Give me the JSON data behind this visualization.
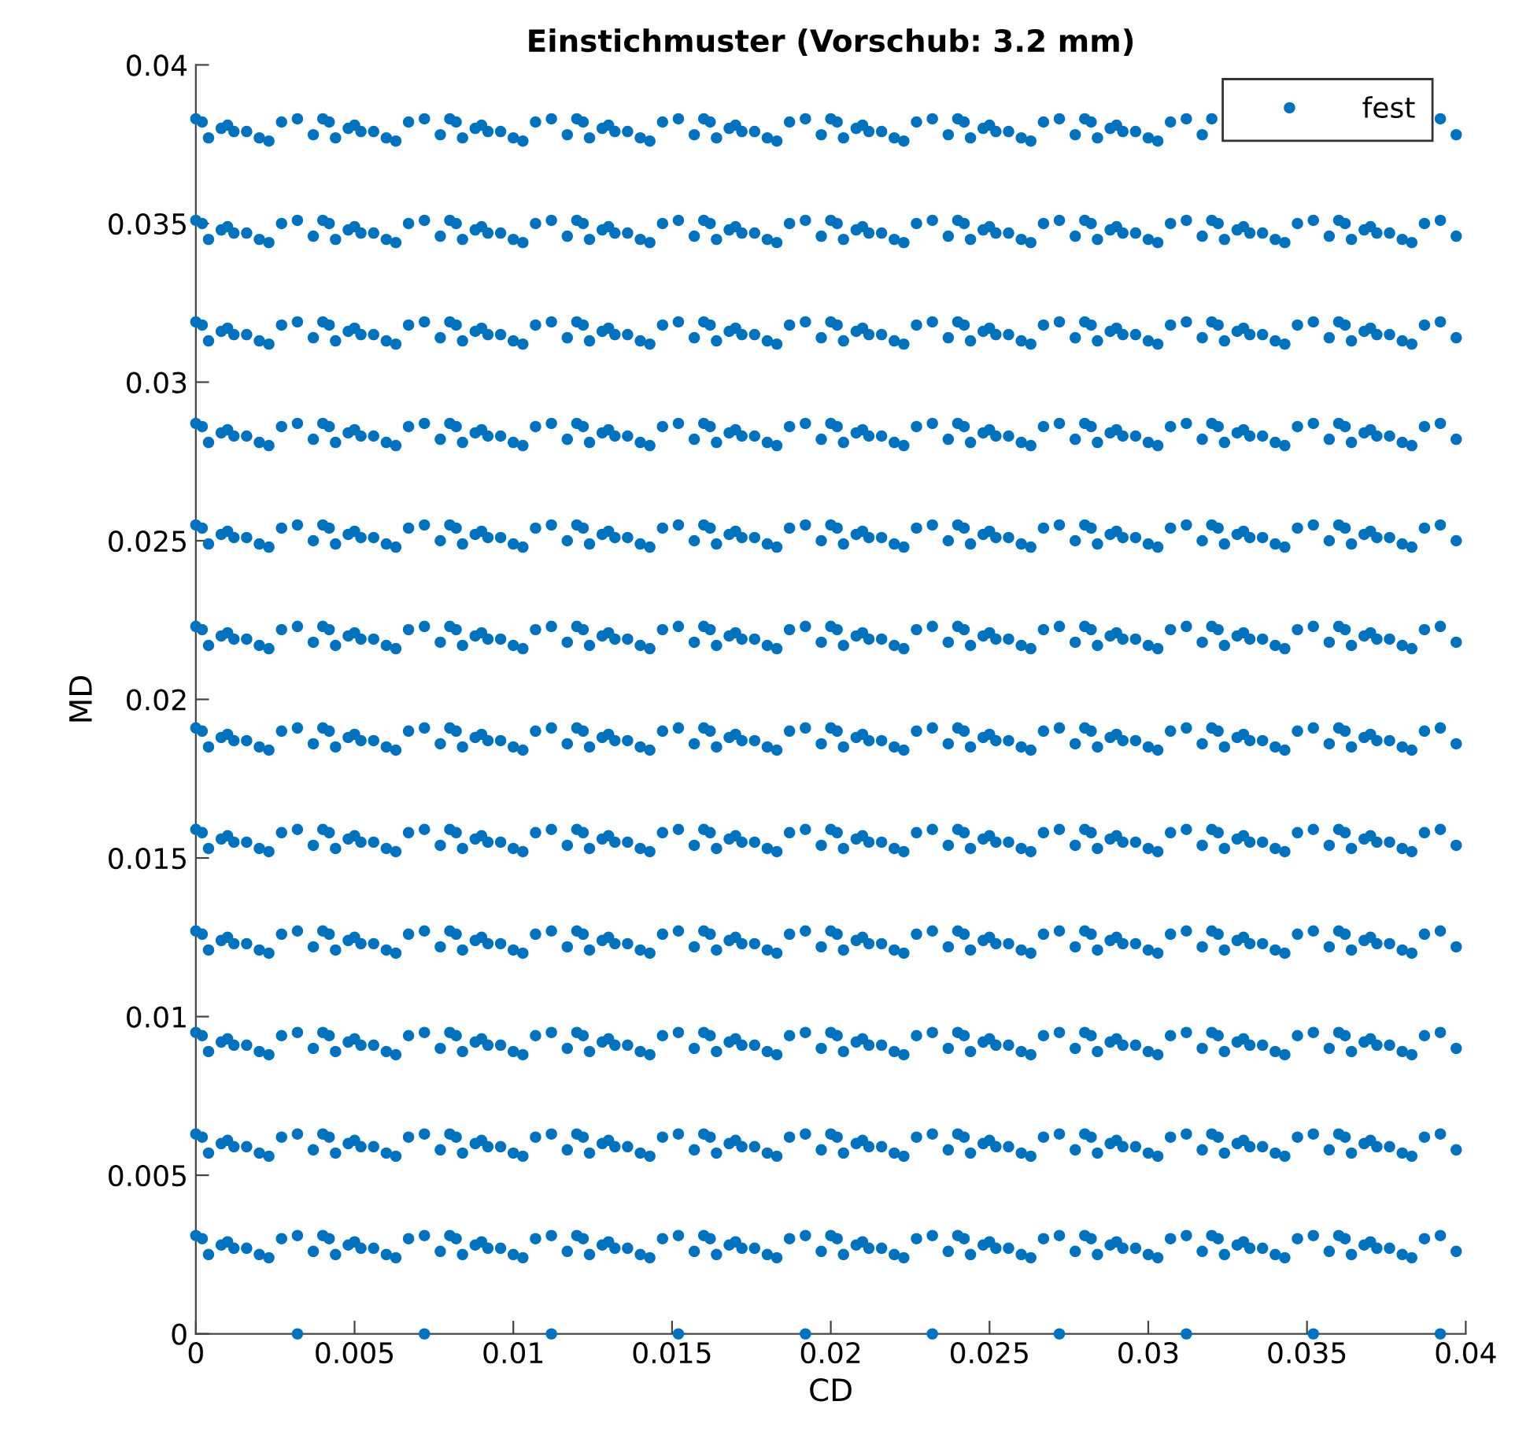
{
  "chart_data": {
    "type": "scatter",
    "title": "Einstichmuster (Vorschub: 3.2 mm)",
    "xlabel": "CD",
    "ylabel": "MD",
    "xlim": [
      0,
      0.04
    ],
    "ylim": [
      0,
      0.04
    ],
    "xticks": [
      0,
      0.005,
      0.01,
      0.015,
      0.02,
      0.025,
      0.03,
      0.035,
      0.04
    ],
    "yticks": [
      0,
      0.005,
      0.01,
      0.015,
      0.02,
      0.025,
      0.03,
      0.035,
      0.04
    ],
    "grid": false,
    "legend": "top right",
    "marker": "circle",
    "x": [
      0,
      0.0002,
      0.0004,
      0.0008,
      0.001,
      0.0012,
      0.0016,
      0.002,
      0.0023,
      0.0027,
      0.0032,
      0.0037,
      0.004,
      0.0042,
      0.0044,
      0.0048,
      0.005,
      0.0052,
      0.0056,
      0.006,
      0.0063,
      0.0067,
      0.0072,
      0.0077,
      0.008,
      0.0082,
      0.0084,
      0.0088,
      0.009,
      0.0092,
      0.0096,
      0.01,
      0.0103,
      0.0107,
      0.0112,
      0.0117,
      0.012,
      0.0122,
      0.0124,
      0.0128,
      0.013,
      0.0132,
      0.0136,
      0.014,
      0.0143,
      0.0147,
      0.0152,
      0.0157,
      0.016,
      0.0162,
      0.0164,
      0.0168,
      0.017,
      0.0172,
      0.0176,
      0.018,
      0.0183,
      0.0187,
      0.0192,
      0.0197,
      0.02,
      0.0202,
      0.0204,
      0.0208,
      0.021,
      0.0212,
      0.0216,
      0.022,
      0.0223,
      0.0227,
      0.0232,
      0.0237,
      0.024,
      0.0242,
      0.0244,
      0.0248,
      0.025,
      0.0252,
      0.0256,
      0.026,
      0.0263,
      0.0267,
      0.0272,
      0.0277,
      0.028,
      0.0282,
      0.0284,
      0.0288,
      0.029,
      0.0292,
      0.0296,
      0.03,
      0.0303,
      0.0307,
      0.0312,
      0.0317,
      0.032,
      0.0322,
      0.0324,
      0.0328,
      0.033,
      0.0332,
      0.0336,
      0.034,
      0.0343,
      0.0347,
      0.0352,
      0.0357,
      0.036,
      0.0362,
      0.0364,
      0.0368,
      0.037,
      0.0372,
      0.0376,
      0.038,
      0.0383,
      0.0387,
      0.0392,
      0.0397
    ],
    "series": [
      {
        "name": "fest",
        "color": "#0072bd",
        "values": [
          0.0383,
          0.0382,
          0.0377,
          0.038,
          0.0381,
          0.0379,
          0.0379,
          0.0377,
          0.0376,
          0.0382,
          0.0383,
          0.0378,
          0.0383,
          0.0382,
          0.0377,
          0.038,
          0.0381,
          0.0379,
          0.0379,
          0.0377,
          0.0376,
          0.0382,
          0.0383,
          0.0378,
          0.0383,
          0.0382,
          0.0377,
          0.038,
          0.0381,
          0.0379,
          0.0379,
          0.0377,
          0.0376,
          0.0382,
          0.0383,
          0.0378,
          0.0383,
          0.0382,
          0.0377,
          0.038,
          0.0381,
          0.0379,
          0.0379,
          0.0377,
          0.0376,
          0.0382,
          0.0383,
          0.0378,
          0.0383,
          0.0382,
          0.0377,
          0.038,
          0.0381,
          0.0379,
          0.0379,
          0.0377,
          0.0376,
          0.0382,
          0.0383,
          0.0378,
          0.0383,
          0.0382,
          0.0377,
          0.038,
          0.0381,
          0.0379,
          0.0379,
          0.0377,
          0.0376,
          0.0382,
          0.0383,
          0.0378,
          0.0383,
          0.0382,
          0.0377,
          0.038,
          0.0381,
          0.0379,
          0.0379,
          0.0377,
          0.0376,
          0.0382,
          0.0383,
          0.0378,
          0.0383,
          0.0382,
          0.0377,
          0.038,
          0.0381,
          0.0379,
          0.0379,
          0.0377,
          0.0376,
          0.0382,
          0.0383,
          0.0378,
          0.0383,
          null,
          null,
          null,
          null,
          null,
          null,
          null,
          null,
          null,
          null,
          null,
          null,
          null,
          null,
          null,
          null,
          null,
          null,
          null,
          null,
          null,
          0.0383,
          0.0378
        ]
      },
      {
        "color": "#0072bd",
        "values": [
          0.0351,
          0.035,
          0.0345,
          0.0348,
          0.0349,
          0.0347,
          0.0347,
          0.0345,
          0.0344,
          0.035,
          0.0351,
          0.0346,
          0.0351,
          0.035,
          0.0345,
          0.0348,
          0.0349,
          0.0347,
          0.0347,
          0.0345,
          0.0344,
          0.035,
          0.0351,
          0.0346,
          0.0351,
          0.035,
          0.0345,
          0.0348,
          0.0349,
          0.0347,
          0.0347,
          0.0345,
          0.0344,
          0.035,
          0.0351,
          0.0346,
          0.0351,
          0.035,
          0.0345,
          0.0348,
          0.0349,
          0.0347,
          0.0347,
          0.0345,
          0.0344,
          0.035,
          0.0351,
          0.0346,
          0.0351,
          0.035,
          0.0345,
          0.0348,
          0.0349,
          0.0347,
          0.0347,
          0.0345,
          0.0344,
          0.035,
          0.0351,
          0.0346,
          0.0351,
          0.035,
          0.0345,
          0.0348,
          0.0349,
          0.0347,
          0.0347,
          0.0345,
          0.0344,
          0.035,
          0.0351,
          0.0346,
          0.0351,
          0.035,
          0.0345,
          0.0348,
          0.0349,
          0.0347,
          0.0347,
          0.0345,
          0.0344,
          0.035,
          0.0351,
          0.0346,
          0.0351,
          0.035,
          0.0345,
          0.0348,
          0.0349,
          0.0347,
          0.0347,
          0.0345,
          0.0344,
          0.035,
          0.0351,
          0.0346,
          0.0351,
          0.035,
          0.0345,
          0.0348,
          0.0349,
          0.0347,
          0.0347,
          0.0345,
          0.0344,
          0.035,
          0.0351,
          0.0346,
          0.0351,
          0.035,
          0.0345,
          0.0348,
          0.0349,
          0.0347,
          0.0347,
          0.0345,
          0.0344,
          0.035,
          0.0351,
          0.0346
        ]
      },
      {
        "color": "#0072bd",
        "values": [
          0.0319,
          0.0318,
          0.0313,
          0.0316,
          0.0317,
          0.0315,
          0.0315,
          0.0313,
          0.0312,
          0.0318,
          0.0319,
          0.0314,
          0.0319,
          0.0318,
          0.0313,
          0.0316,
          0.0317,
          0.0315,
          0.0315,
          0.0313,
          0.0312,
          0.0318,
          0.0319,
          0.0314,
          0.0319,
          0.0318,
          0.0313,
          0.0316,
          0.0317,
          0.0315,
          0.0315,
          0.0313,
          0.0312,
          0.0318,
          0.0319,
          0.0314,
          0.0319,
          0.0318,
          0.0313,
          0.0316,
          0.0317,
          0.0315,
          0.0315,
          0.0313,
          0.0312,
          0.0318,
          0.0319,
          0.0314,
          0.0319,
          0.0318,
          0.0313,
          0.0316,
          0.0317,
          0.0315,
          0.0315,
          0.0313,
          0.0312,
          0.0318,
          0.0319,
          0.0314,
          0.0319,
          0.0318,
          0.0313,
          0.0316,
          0.0317,
          0.0315,
          0.0315,
          0.0313,
          0.0312,
          0.0318,
          0.0319,
          0.0314,
          0.0319,
          0.0318,
          0.0313,
          0.0316,
          0.0317,
          0.0315,
          0.0315,
          0.0313,
          0.0312,
          0.0318,
          0.0319,
          0.0314,
          0.0319,
          0.0318,
          0.0313,
          0.0316,
          0.0317,
          0.0315,
          0.0315,
          0.0313,
          0.0312,
          0.0318,
          0.0319,
          0.0314,
          0.0319,
          0.0318,
          0.0313,
          0.0316,
          0.0317,
          0.0315,
          0.0315,
          0.0313,
          0.0312,
          0.0318,
          0.0319,
          0.0314,
          0.0319,
          0.0318,
          0.0313,
          0.0316,
          0.0317,
          0.0315,
          0.0315,
          0.0313,
          0.0312,
          0.0318,
          0.0319,
          0.0314
        ]
      },
      {
        "color": "#0072bd",
        "values": [
          0.0287,
          0.0286,
          0.0281,
          0.0284,
          0.0285,
          0.0283,
          0.0283,
          0.0281,
          0.028,
          0.0286,
          0.0287,
          0.0282,
          0.0287,
          0.0286,
          0.0281,
          0.0284,
          0.0285,
          0.0283,
          0.0283,
          0.0281,
          0.028,
          0.0286,
          0.0287,
          0.0282,
          0.0287,
          0.0286,
          0.0281,
          0.0284,
          0.0285,
          0.0283,
          0.0283,
          0.0281,
          0.028,
          0.0286,
          0.0287,
          0.0282,
          0.0287,
          0.0286,
          0.0281,
          0.0284,
          0.0285,
          0.0283,
          0.0283,
          0.0281,
          0.028,
          0.0286,
          0.0287,
          0.0282,
          0.0287,
          0.0286,
          0.0281,
          0.0284,
          0.0285,
          0.0283,
          0.0283,
          0.0281,
          0.028,
          0.0286,
          0.0287,
          0.0282,
          0.0287,
          0.0286,
          0.0281,
          0.0284,
          0.0285,
          0.0283,
          0.0283,
          0.0281,
          0.028,
          0.0286,
          0.0287,
          0.0282,
          0.0287,
          0.0286,
          0.0281,
          0.0284,
          0.0285,
          0.0283,
          0.0283,
          0.0281,
          0.028,
          0.0286,
          0.0287,
          0.0282,
          0.0287,
          0.0286,
          0.0281,
          0.0284,
          0.0285,
          0.0283,
          0.0283,
          0.0281,
          0.028,
          0.0286,
          0.0287,
          0.0282,
          0.0287,
          0.0286,
          0.0281,
          0.0284,
          0.0285,
          0.0283,
          0.0283,
          0.0281,
          0.028,
          0.0286,
          0.0287,
          0.0282,
          0.0287,
          0.0286,
          0.0281,
          0.0284,
          0.0285,
          0.0283,
          0.0283,
          0.0281,
          0.028,
          0.0286,
          0.0287,
          0.0282
        ]
      },
      {
        "color": "#0072bd",
        "values": [
          0.0255,
          0.0254,
          0.0249,
          0.0252,
          0.0253,
          0.0251,
          0.0251,
          0.0249,
          0.0248,
          0.0254,
          0.0255,
          0.025,
          0.0255,
          0.0254,
          0.0249,
          0.0252,
          0.0253,
          0.0251,
          0.0251,
          0.0249,
          0.0248,
          0.0254,
          0.0255,
          0.025,
          0.0255,
          0.0254,
          0.0249,
          0.0252,
          0.0253,
          0.0251,
          0.0251,
          0.0249,
          0.0248,
          0.0254,
          0.0255,
          0.025,
          0.0255,
          0.0254,
          0.0249,
          0.0252,
          0.0253,
          0.0251,
          0.0251,
          0.0249,
          0.0248,
          0.0254,
          0.0255,
          0.025,
          0.0255,
          0.0254,
          0.0249,
          0.0252,
          0.0253,
          0.0251,
          0.0251,
          0.0249,
          0.0248,
          0.0254,
          0.0255,
          0.025,
          0.0255,
          0.0254,
          0.0249,
          0.0252,
          0.0253,
          0.0251,
          0.0251,
          0.0249,
          0.0248,
          0.0254,
          0.0255,
          0.025,
          0.0255,
          0.0254,
          0.0249,
          0.0252,
          0.0253,
          0.0251,
          0.0251,
          0.0249,
          0.0248,
          0.0254,
          0.0255,
          0.025,
          0.0255,
          0.0254,
          0.0249,
          0.0252,
          0.0253,
          0.0251,
          0.0251,
          0.0249,
          0.0248,
          0.0254,
          0.0255,
          0.025,
          0.0255,
          0.0254,
          0.0249,
          0.0252,
          0.0253,
          0.0251,
          0.0251,
          0.0249,
          0.0248,
          0.0254,
          0.0255,
          0.025,
          0.0255,
          0.0254,
          0.0249,
          0.0252,
          0.0253,
          0.0251,
          0.0251,
          0.0249,
          0.0248,
          0.0254,
          0.0255,
          0.025
        ]
      },
      {
        "color": "#0072bd",
        "values": [
          0.0223,
          0.0222,
          0.0217,
          0.022,
          0.0221,
          0.0219,
          0.0219,
          0.0217,
          0.0216,
          0.0222,
          0.0223,
          0.0218,
          0.0223,
          0.0222,
          0.0217,
          0.022,
          0.0221,
          0.0219,
          0.0219,
          0.0217,
          0.0216,
          0.0222,
          0.0223,
          0.0218,
          0.0223,
          0.0222,
          0.0217,
          0.022,
          0.0221,
          0.0219,
          0.0219,
          0.0217,
          0.0216,
          0.0222,
          0.0223,
          0.0218,
          0.0223,
          0.0222,
          0.0217,
          0.022,
          0.0221,
          0.0219,
          0.0219,
          0.0217,
          0.0216,
          0.0222,
          0.0223,
          0.0218,
          0.0223,
          0.0222,
          0.0217,
          0.022,
          0.0221,
          0.0219,
          0.0219,
          0.0217,
          0.0216,
          0.0222,
          0.0223,
          0.0218,
          0.0223,
          0.0222,
          0.0217,
          0.022,
          0.0221,
          0.0219,
          0.0219,
          0.0217,
          0.0216,
          0.0222,
          0.0223,
          0.0218,
          0.0223,
          0.0222,
          0.0217,
          0.022,
          0.0221,
          0.0219,
          0.0219,
          0.0217,
          0.0216,
          0.0222,
          0.0223,
          0.0218,
          0.0223,
          0.0222,
          0.0217,
          0.022,
          0.0221,
          0.0219,
          0.0219,
          0.0217,
          0.0216,
          0.0222,
          0.0223,
          0.0218,
          0.0223,
          0.0222,
          0.0217,
          0.022,
          0.0221,
          0.0219,
          0.0219,
          0.0217,
          0.0216,
          0.0222,
          0.0223,
          0.0218,
          0.0223,
          0.0222,
          0.0217,
          0.022,
          0.0221,
          0.0219,
          0.0219,
          0.0217,
          0.0216,
          0.0222,
          0.0223,
          0.0218
        ]
      },
      {
        "color": "#0072bd",
        "values": [
          0.0191,
          0.019,
          0.0185,
          0.0188,
          0.0189,
          0.0187,
          0.0187,
          0.0185,
          0.0184,
          0.019,
          0.0191,
          0.0186,
          0.0191,
          0.019,
          0.0185,
          0.0188,
          0.0189,
          0.0187,
          0.0187,
          0.0185,
          0.0184,
          0.019,
          0.0191,
          0.0186,
          0.0191,
          0.019,
          0.0185,
          0.0188,
          0.0189,
          0.0187,
          0.0187,
          0.0185,
          0.0184,
          0.019,
          0.0191,
          0.0186,
          0.0191,
          0.019,
          0.0185,
          0.0188,
          0.0189,
          0.0187,
          0.0187,
          0.0185,
          0.0184,
          0.019,
          0.0191,
          0.0186,
          0.0191,
          0.019,
          0.0185,
          0.0188,
          0.0189,
          0.0187,
          0.0187,
          0.0185,
          0.0184,
          0.019,
          0.0191,
          0.0186,
          0.0191,
          0.019,
          0.0185,
          0.0188,
          0.0189,
          0.0187,
          0.0187,
          0.0185,
          0.0184,
          0.019,
          0.0191,
          0.0186,
          0.0191,
          0.019,
          0.0185,
          0.0188,
          0.0189,
          0.0187,
          0.0187,
          0.0185,
          0.0184,
          0.019,
          0.0191,
          0.0186,
          0.0191,
          0.019,
          0.0185,
          0.0188,
          0.0189,
          0.0187,
          0.0187,
          0.0185,
          0.0184,
          0.019,
          0.0191,
          0.0186,
          0.0191,
          0.019,
          0.0185,
          0.0188,
          0.0189,
          0.0187,
          0.0187,
          0.0185,
          0.0184,
          0.019,
          0.0191,
          0.0186,
          0.0191,
          0.019,
          0.0185,
          0.0188,
          0.0189,
          0.0187,
          0.0187,
          0.0185,
          0.0184,
          0.019,
          0.0191,
          0.0186
        ]
      },
      {
        "color": "#0072bd",
        "values": [
          0.0159,
          0.0158,
          0.0153,
          0.0156,
          0.0157,
          0.0155,
          0.0155,
          0.0153,
          0.0152,
          0.0158,
          0.0159,
          0.0154,
          0.0159,
          0.0158,
          0.0153,
          0.0156,
          0.0157,
          0.0155,
          0.0155,
          0.0153,
          0.0152,
          0.0158,
          0.0159,
          0.0154,
          0.0159,
          0.0158,
          0.0153,
          0.0156,
          0.0157,
          0.0155,
          0.0155,
          0.0153,
          0.0152,
          0.0158,
          0.0159,
          0.0154,
          0.0159,
          0.0158,
          0.0153,
          0.0156,
          0.0157,
          0.0155,
          0.0155,
          0.0153,
          0.0152,
          0.0158,
          0.0159,
          0.0154,
          0.0159,
          0.0158,
          0.0153,
          0.0156,
          0.0157,
          0.0155,
          0.0155,
          0.0153,
          0.0152,
          0.0158,
          0.0159,
          0.0154,
          0.0159,
          0.0158,
          0.0153,
          0.0156,
          0.0157,
          0.0155,
          0.0155,
          0.0153,
          0.0152,
          0.0158,
          0.0159,
          0.0154,
          0.0159,
          0.0158,
          0.0153,
          0.0156,
          0.0157,
          0.0155,
          0.0155,
          0.0153,
          0.0152,
          0.0158,
          0.0159,
          0.0154,
          0.0159,
          0.0158,
          0.0153,
          0.0156,
          0.0157,
          0.0155,
          0.0155,
          0.0153,
          0.0152,
          0.0158,
          0.0159,
          0.0154,
          0.0159,
          0.0158,
          0.0153,
          0.0156,
          0.0157,
          0.0155,
          0.0155,
          0.0153,
          0.0152,
          0.0158,
          0.0159,
          0.0154,
          0.0159,
          0.0158,
          0.0153,
          0.0156,
          0.0157,
          0.0155,
          0.0155,
          0.0153,
          0.0152,
          0.0158,
          0.0159,
          0.0154
        ]
      },
      {
        "color": "#0072bd",
        "values": [
          0.0127,
          0.0126,
          0.0121,
          0.0124,
          0.0125,
          0.0123,
          0.0123,
          0.0121,
          0.012,
          0.0126,
          0.0127,
          0.0122,
          0.0127,
          0.0126,
          0.0121,
          0.0124,
          0.0125,
          0.0123,
          0.0123,
          0.0121,
          0.012,
          0.0126,
          0.0127,
          0.0122,
          0.0127,
          0.0126,
          0.0121,
          0.0124,
          0.0125,
          0.0123,
          0.0123,
          0.0121,
          0.012,
          0.0126,
          0.0127,
          0.0122,
          0.0127,
          0.0126,
          0.0121,
          0.0124,
          0.0125,
          0.0123,
          0.0123,
          0.0121,
          0.012,
          0.0126,
          0.0127,
          0.0122,
          0.0127,
          0.0126,
          0.0121,
          0.0124,
          0.0125,
          0.0123,
          0.0123,
          0.0121,
          0.012,
          0.0126,
          0.0127,
          0.0122,
          0.0127,
          0.0126,
          0.0121,
          0.0124,
          0.0125,
          0.0123,
          0.0123,
          0.0121,
          0.012,
          0.0126,
          0.0127,
          0.0122,
          0.0127,
          0.0126,
          0.0121,
          0.0124,
          0.0125,
          0.0123,
          0.0123,
          0.0121,
          0.012,
          0.0126,
          0.0127,
          0.0122,
          0.0127,
          0.0126,
          0.0121,
          0.0124,
          0.0125,
          0.0123,
          0.0123,
          0.0121,
          0.012,
          0.0126,
          0.0127,
          0.0122,
          0.0127,
          0.0126,
          0.0121,
          0.0124,
          0.0125,
          0.0123,
          0.0123,
          0.0121,
          0.012,
          0.0126,
          0.0127,
          0.0122,
          0.0127,
          0.0126,
          0.0121,
          0.0124,
          0.0125,
          0.0123,
          0.0123,
          0.0121,
          0.012,
          0.0126,
          0.0127,
          0.0122
        ]
      },
      {
        "color": "#0072bd",
        "values": [
          0.0095,
          0.0094,
          0.0089,
          0.0092,
          0.0093,
          0.0091,
          0.0091,
          0.0089,
          0.0088,
          0.0094,
          0.0095,
          0.009,
          0.0095,
          0.0094,
          0.0089,
          0.0092,
          0.0093,
          0.0091,
          0.0091,
          0.0089,
          0.0088,
          0.0094,
          0.0095,
          0.009,
          0.0095,
          0.0094,
          0.0089,
          0.0092,
          0.0093,
          0.0091,
          0.0091,
          0.0089,
          0.0088,
          0.0094,
          0.0095,
          0.009,
          0.0095,
          0.0094,
          0.0089,
          0.0092,
          0.0093,
          0.0091,
          0.0091,
          0.0089,
          0.0088,
          0.0094,
          0.0095,
          0.009,
          0.0095,
          0.0094,
          0.0089,
          0.0092,
          0.0093,
          0.0091,
          0.0091,
          0.0089,
          0.0088,
          0.0094,
          0.0095,
          0.009,
          0.0095,
          0.0094,
          0.0089,
          0.0092,
          0.0093,
          0.0091,
          0.0091,
          0.0089,
          0.0088,
          0.0094,
          0.0095,
          0.009,
          0.0095,
          0.0094,
          0.0089,
          0.0092,
          0.0093,
          0.0091,
          0.0091,
          0.0089,
          0.0088,
          0.0094,
          0.0095,
          0.009,
          0.0095,
          0.0094,
          0.0089,
          0.0092,
          0.0093,
          0.0091,
          0.0091,
          0.0089,
          0.0088,
          0.0094,
          0.0095,
          0.009,
          0.0095,
          0.0094,
          0.0089,
          0.0092,
          0.0093,
          0.0091,
          0.0091,
          0.0089,
          0.0088,
          0.0094,
          0.0095,
          0.009,
          0.0095,
          0.0094,
          0.0089,
          0.0092,
          0.0093,
          0.0091,
          0.0091,
          0.0089,
          0.0088,
          0.0094,
          0.0095,
          0.009
        ]
      },
      {
        "color": "#0072bd",
        "values": [
          0.0063,
          0.0062,
          0.0057,
          0.006,
          0.0061,
          0.0059,
          0.0059,
          0.0057,
          0.0056,
          0.0062,
          0.0063,
          0.0058,
          0.0063,
          0.0062,
          0.0057,
          0.006,
          0.0061,
          0.0059,
          0.0059,
          0.0057,
          0.0056,
          0.0062,
          0.0063,
          0.0058,
          0.0063,
          0.0062,
          0.0057,
          0.006,
          0.0061,
          0.0059,
          0.0059,
          0.0057,
          0.0056,
          0.0062,
          0.0063,
          0.0058,
          0.0063,
          0.0062,
          0.0057,
          0.006,
          0.0061,
          0.0059,
          0.0059,
          0.0057,
          0.0056,
          0.0062,
          0.0063,
          0.0058,
          0.0063,
          0.0062,
          0.0057,
          0.006,
          0.0061,
          0.0059,
          0.0059,
          0.0057,
          0.0056,
          0.0062,
          0.0063,
          0.0058,
          0.0063,
          0.0062,
          0.0057,
          0.006,
          0.0061,
          0.0059,
          0.0059,
          0.0057,
          0.0056,
          0.0062,
          0.0063,
          0.0058,
          0.0063,
          0.0062,
          0.0057,
          0.006,
          0.0061,
          0.0059,
          0.0059,
          0.0057,
          0.0056,
          0.0062,
          0.0063,
          0.0058,
          0.0063,
          0.0062,
          0.0057,
          0.006,
          0.0061,
          0.0059,
          0.0059,
          0.0057,
          0.0056,
          0.0062,
          0.0063,
          0.0058,
          0.0063,
          0.0062,
          0.0057,
          0.006,
          0.0061,
          0.0059,
          0.0059,
          0.0057,
          0.0056,
          0.0062,
          0.0063,
          0.0058,
          0.0063,
          0.0062,
          0.0057,
          0.006,
          0.0061,
          0.0059,
          0.0059,
          0.0057,
          0.0056,
          0.0062,
          0.0063,
          0.0058
        ]
      },
      {
        "color": "#0072bd",
        "values": [
          0.0031,
          0.003,
          0.0025,
          0.0028,
          0.0029,
          0.0027,
          0.0027,
          0.0025,
          0.0024,
          0.003,
          0.0031,
          0.0026,
          0.0031,
          0.003,
          0.0025,
          0.0028,
          0.0029,
          0.0027,
          0.0027,
          0.0025,
          0.0024,
          0.003,
          0.0031,
          0.0026,
          0.0031,
          0.003,
          0.0025,
          0.0028,
          0.0029,
          0.0027,
          0.0027,
          0.0025,
          0.0024,
          0.003,
          0.0031,
          0.0026,
          0.0031,
          0.003,
          0.0025,
          0.0028,
          0.0029,
          0.0027,
          0.0027,
          0.0025,
          0.0024,
          0.003,
          0.0031,
          0.0026,
          0.0031,
          0.003,
          0.0025,
          0.0028,
          0.0029,
          0.0027,
          0.0027,
          0.0025,
          0.0024,
          0.003,
          0.0031,
          0.0026,
          0.0031,
          0.003,
          0.0025,
          0.0028,
          0.0029,
          0.0027,
          0.0027,
          0.0025,
          0.0024,
          0.003,
          0.0031,
          0.0026,
          0.0031,
          0.003,
          0.0025,
          0.0028,
          0.0029,
          0.0027,
          0.0027,
          0.0025,
          0.0024,
          0.003,
          0.0031,
          0.0026,
          0.0031,
          0.003,
          0.0025,
          0.0028,
          0.0029,
          0.0027,
          0.0027,
          0.0025,
          0.0024,
          0.003,
          0.0031,
          0.0026,
          0.0031,
          0.003,
          0.0025,
          0.0028,
          0.0029,
          0.0027,
          0.0027,
          0.0025,
          0.0024,
          0.003,
          0.0031,
          0.0026,
          0.0031,
          0.003,
          0.0025,
          0.0028,
          0.0029,
          0.0027,
          0.0027,
          0.0025,
          0.0024,
          0.003,
          0.0031,
          0.0026
        ]
      },
      {
        "color": "#0072bd",
        "x": [
          0.0032,
          0.0072,
          0.0112,
          0.0152,
          0.0192,
          0.0232,
          0.0272,
          0.0312,
          0.0352,
          0.0392
        ],
        "values": [
          0,
          0,
          0,
          0,
          0,
          0,
          0,
          0,
          0,
          0
        ]
      }
    ]
  }
}
